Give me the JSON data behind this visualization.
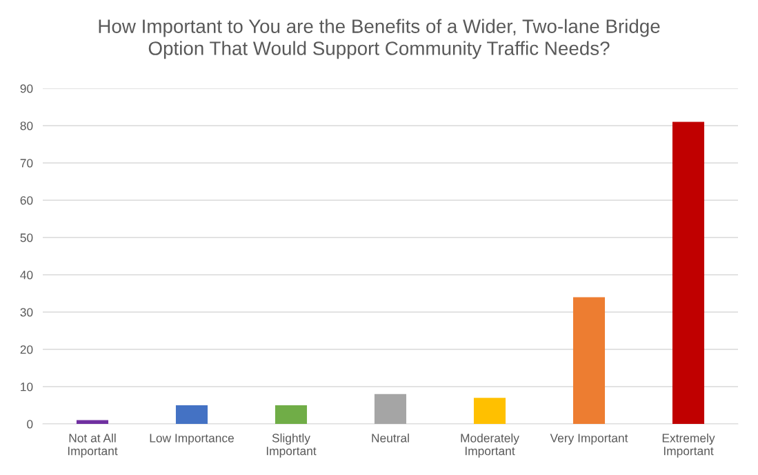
{
  "chart_data": {
    "type": "bar",
    "title": "How Important to You are the Benefits of a Wider, Two-lane Bridge\nOption That Would Support Community Traffic Needs?",
    "categories": [
      "Not at All\nImportant",
      "Low Importance",
      "Slightly\nImportant",
      "Neutral",
      "Moderately\nImportant",
      "Very Important",
      "Extremely\nImportant"
    ],
    "values": [
      1,
      5,
      5,
      8,
      7,
      34,
      81
    ],
    "colors": [
      "#7030a0",
      "#4472c4",
      "#70ad47",
      "#a5a5a5",
      "#ffc000",
      "#ed7d31",
      "#c00000"
    ],
    "ylim": [
      0,
      90
    ],
    "yticks": [
      0,
      10,
      20,
      30,
      40,
      50,
      60,
      70,
      80,
      90
    ],
    "grid": "y",
    "legend": false
  }
}
